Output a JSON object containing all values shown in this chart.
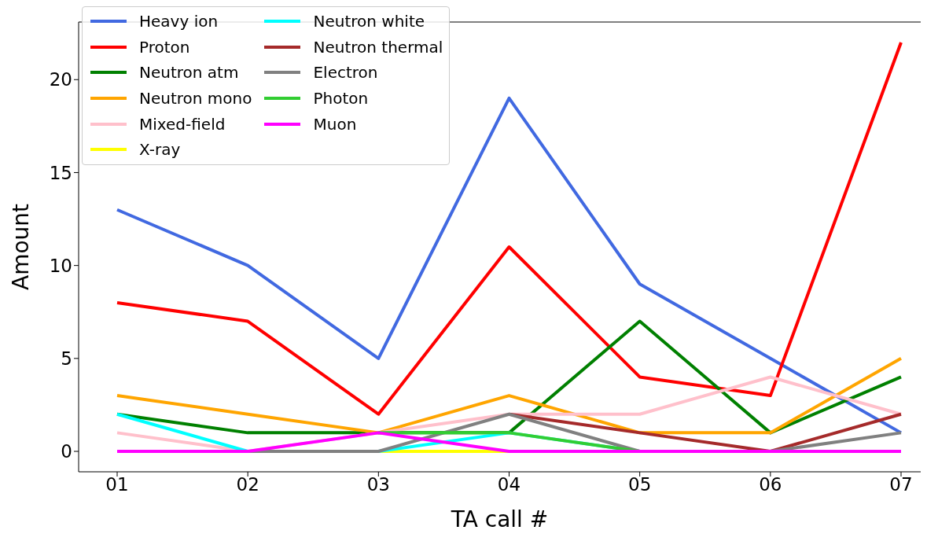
{
  "chart_data": {
    "type": "line",
    "xlabel": "TA call #",
    "ylabel": "Amount",
    "categories": [
      "01",
      "02",
      "03",
      "04",
      "05",
      "06",
      "07"
    ],
    "series": [
      {
        "name": "Heavy ion",
        "color": "#4169e1",
        "values": [
          13,
          10,
          5,
          19,
          9,
          5,
          1
        ]
      },
      {
        "name": "Proton",
        "color": "#ff0000",
        "values": [
          8,
          7,
          2,
          11,
          4,
          3,
          22
        ]
      },
      {
        "name": "Neutron atm",
        "color": "#008000",
        "values": [
          2,
          1,
          1,
          1,
          7,
          1,
          4
        ]
      },
      {
        "name": "Neutron mono",
        "color": "#ffa500",
        "values": [
          3,
          2,
          1,
          3,
          1,
          1,
          5
        ]
      },
      {
        "name": "Mixed-field",
        "color": "#ffc0cb",
        "values": [
          1,
          0,
          1,
          2,
          2,
          4,
          2
        ]
      },
      {
        "name": "X-ray",
        "color": "#ffff00",
        "values": [
          null,
          null,
          0,
          0,
          null,
          null,
          null
        ]
      },
      {
        "name": "Neutron white",
        "color": "#00ffff",
        "values": [
          2,
          0,
          0,
          1,
          0,
          null,
          null
        ]
      },
      {
        "name": "Neutron thermal",
        "color": "#a52a2a",
        "values": [
          null,
          null,
          null,
          2,
          1,
          0,
          2
        ]
      },
      {
        "name": "Electron",
        "color": "#808080",
        "values": [
          0,
          0,
          0,
          2,
          0,
          0,
          1
        ]
      },
      {
        "name": "Photon",
        "color": "#32cd32",
        "values": [
          null,
          null,
          1,
          1,
          0,
          null,
          null
        ]
      },
      {
        "name": "Muon",
        "color": "#ff00ff",
        "values": [
          0,
          0,
          1,
          0,
          0,
          0,
          0
        ]
      }
    ],
    "ylim": [
      -1.1,
      23.1
    ],
    "yticks": [
      0,
      5,
      10,
      15,
      20
    ],
    "grid": false,
    "legend": "top left",
    "marker": "none",
    "line_style": "solid"
  }
}
